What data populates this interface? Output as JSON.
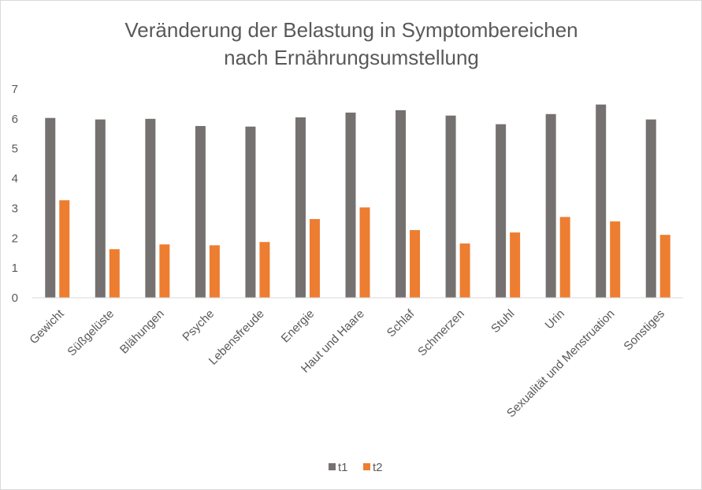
{
  "chart_data": {
    "type": "bar",
    "title": [
      "Veränderung der Belastung in Symptombereichen",
      "nach Ernährungsumstellung"
    ],
    "categories": [
      "Gewicht",
      "Süßgelüste",
      "Blähungen",
      "Psyche",
      "Lebensfreude",
      "Energie",
      "Haut und Haare",
      "Schlaf",
      "Schmerzen",
      "Stuhl",
      "Urin",
      "Sexualität und Menstruation",
      "Sonstiges"
    ],
    "series": [
      {
        "name": "t1",
        "color": "#767171",
        "values": [
          6.03,
          5.98,
          6.0,
          5.76,
          5.74,
          6.05,
          6.21,
          6.29,
          6.11,
          5.82,
          6.16,
          6.48,
          5.98
        ]
      },
      {
        "name": "t2",
        "color": "#ED7D31",
        "values": [
          3.27,
          1.63,
          1.79,
          1.76,
          1.87,
          2.64,
          3.03,
          2.27,
          1.82,
          2.19,
          2.71,
          2.56,
          2.11
        ]
      }
    ],
    "ylim": [
      0,
      7
    ],
    "yticks": [
      "0",
      "1",
      "2",
      "3",
      "4",
      "5",
      "6",
      "7"
    ],
    "grid": false,
    "legend_position": "bottom"
  }
}
